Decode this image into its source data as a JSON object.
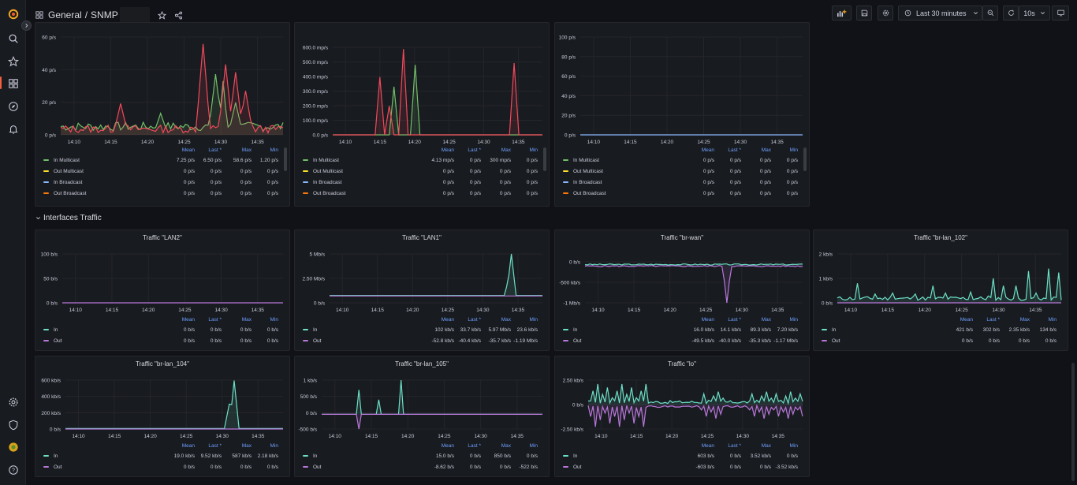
{
  "topbar": {
    "crumb_root": "General",
    "crumb_sep": "/",
    "crumb_page": "SNMP",
    "time_range": "Last 30 minutes",
    "refresh": "10s"
  },
  "section": {
    "title": "Interfaces Traffic"
  },
  "legend_headers": {
    "mean": "Mean",
    "last": "Last *",
    "max": "Max",
    "min": "Min"
  },
  "colors": {
    "green": "#73bf69",
    "yellow": "#fade2a",
    "blue": "#8ab8ff",
    "orange": "#ff780a",
    "red": "#f2495c",
    "cyan": "#6ce0c7",
    "purple": "#b877d9"
  },
  "time_ticks": [
    "14:10",
    "14:15",
    "14:20",
    "14:25",
    "14:30",
    "14:35"
  ],
  "top_panels": [
    {
      "y_ticks": [
        "60 p/s",
        "40 p/s",
        "20 p/s",
        "0 p/s"
      ],
      "rows": [
        {
          "name": "In Multicast",
          "mean": "7.25 p/s",
          "last": "6.50 p/s",
          "max": "58.6 p/s",
          "min": "1.20 p/s"
        },
        {
          "name": "Out Multicast",
          "mean": "0 p/s",
          "last": "0 p/s",
          "max": "0 p/s",
          "min": "0 p/s"
        },
        {
          "name": "In Broadcast",
          "mean": "0 p/s",
          "last": "0 p/s",
          "max": "0 p/s",
          "min": "0 p/s"
        },
        {
          "name": "Out Broadcast",
          "mean": "0 p/s",
          "last": "0 p/s",
          "max": "0 p/s",
          "min": "0 p/s"
        }
      ]
    },
    {
      "y_ticks": [
        "600.0 mp/s",
        "500.0 mp/s",
        "400.0 mp/s",
        "300.0 mp/s",
        "200.0 mp/s",
        "100.0 mp/s",
        "0.0 p/s"
      ],
      "rows": [
        {
          "name": "In Multicast",
          "mean": "4.13 mp/s",
          "last": "0 p/s",
          "max": "300 mp/s",
          "min": "0 p/s"
        },
        {
          "name": "Out Multicast",
          "mean": "0 p/s",
          "last": "0 p/s",
          "max": "0 p/s",
          "min": "0 p/s"
        },
        {
          "name": "In Broadcast",
          "mean": "0 p/s",
          "last": "0 p/s",
          "max": "0 p/s",
          "min": "0 p/s"
        },
        {
          "name": "Out Broadcast",
          "mean": "0 p/s",
          "last": "0 p/s",
          "max": "0 p/s",
          "min": "0 p/s"
        }
      ]
    },
    {
      "y_ticks": [
        "100 p/s",
        "80 p/s",
        "60 p/s",
        "40 p/s",
        "20 p/s",
        "0 p/s"
      ],
      "rows": [
        {
          "name": "In Multicast",
          "mean": "0 p/s",
          "last": "0 p/s",
          "max": "0 p/s",
          "min": "0 p/s"
        },
        {
          "name": "Out Multicast",
          "mean": "0 p/s",
          "last": "0 p/s",
          "max": "0 p/s",
          "min": "0 p/s"
        },
        {
          "name": "In Broadcast",
          "mean": "0 p/s",
          "last": "0 p/s",
          "max": "0 p/s",
          "min": "0 p/s"
        },
        {
          "name": "Out Broadcast",
          "mean": "0 p/s",
          "last": "0 p/s",
          "max": "0 p/s",
          "min": "0 p/s"
        }
      ]
    }
  ],
  "traffic_panels": [
    {
      "title": "Traffic \"LAN2\"",
      "y_ticks": [
        "100 b/s",
        "50 b/s",
        "0 b/s"
      ],
      "rows": [
        {
          "name": "In",
          "mean": "0 b/s",
          "last": "0 b/s",
          "max": "0 b/s",
          "min": "0 b/s"
        },
        {
          "name": "Out",
          "mean": "0 b/s",
          "last": "0 b/s",
          "max": "0 b/s",
          "min": "0 b/s"
        }
      ]
    },
    {
      "title": "Traffic \"LAN1\"",
      "y_ticks": [
        "5 Mb/s",
        "2.50 Mb/s",
        "0 b/s"
      ],
      "rows": [
        {
          "name": "In",
          "mean": "102 kb/s",
          "last": "33.7 kb/s",
          "max": "5.97 Mb/s",
          "min": "23.6 kb/s"
        },
        {
          "name": "Out",
          "mean": "-52.8 kb/s",
          "last": "-40.4 kb/s",
          "max": "-35.7 kb/s",
          "min": "-1.19 Mb/s"
        }
      ]
    },
    {
      "title": "Traffic \"br-wan\"",
      "y_ticks": [
        "0 b/s",
        "-500 kb/s",
        "-1 Mb/s"
      ],
      "rows": [
        {
          "name": "In",
          "mean": "16.0 kb/s",
          "last": "14.1 kb/s",
          "max": "89.3 kb/s",
          "min": "7.20 kb/s"
        },
        {
          "name": "Out",
          "mean": "-49.5 kb/s",
          "last": "-40.0 kb/s",
          "max": "-35.3 kb/s",
          "min": "-1.17 Mb/s"
        }
      ]
    },
    {
      "title": "Traffic \"br-lan_102\"",
      "y_ticks": [
        "2 kb/s",
        "1 kb/s",
        "0 b/s"
      ],
      "rows": [
        {
          "name": "In",
          "mean": "421 b/s",
          "last": "302 b/s",
          "max": "2.35 kb/s",
          "min": "134 b/s"
        },
        {
          "name": "Out",
          "mean": "0 b/s",
          "last": "0 b/s",
          "max": "0 b/s",
          "min": "0 b/s"
        }
      ]
    },
    {
      "title": "Traffic \"br-lan_104\"",
      "y_ticks": [
        "600 kb/s",
        "400 kb/s",
        "200 kb/s",
        "0 b/s"
      ],
      "rows": [
        {
          "name": "In",
          "mean": "19.0 kb/s",
          "last": "9.52 kb/s",
          "max": "587 kb/s",
          "min": "2.18 kb/s"
        },
        {
          "name": "Out",
          "mean": "0 b/s",
          "last": "0 b/s",
          "max": "0 b/s",
          "min": "0 b/s"
        }
      ]
    },
    {
      "title": "Traffic \"br-lan_105\"",
      "y_ticks": [
        "1 kb/s",
        "500 b/s",
        "0 b/s",
        "-500 b/s"
      ],
      "rows": [
        {
          "name": "In",
          "mean": "15.0 b/s",
          "last": "0 b/s",
          "max": "850 b/s",
          "min": "0 b/s"
        },
        {
          "name": "Out",
          "mean": "-8.62 b/s",
          "last": "0 b/s",
          "max": "0 b/s",
          "min": "-522 b/s"
        }
      ]
    },
    {
      "title": "Traffic \"lo\"",
      "y_ticks": [
        "2.50 kb/s",
        "0 b/s",
        "-2.50 kb/s"
      ],
      "rows": [
        {
          "name": "In",
          "mean": "603 b/s",
          "last": "0 b/s",
          "max": "3.52 kb/s",
          "min": "0 b/s"
        },
        {
          "name": "Out",
          "mean": "-603 b/s",
          "last": "0 b/s",
          "max": "0 b/s",
          "min": "-3.52 kb/s"
        }
      ]
    }
  ]
}
